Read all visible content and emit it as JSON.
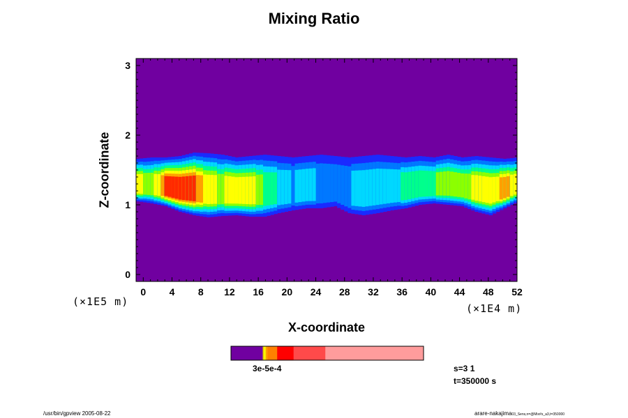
{
  "title": "Mixing Ratio",
  "chart_data": {
    "type": "heatmap",
    "title": "Mixing Ratio",
    "xlabel": "X-coordinate",
    "ylabel": "Z-coordinate",
    "x_scale_label": "(×1E4 m)",
    "y_scale_label": "(×1E5 m)",
    "xlim": [
      -1,
      52
    ],
    "ylim": [
      -0.1,
      3.1
    ],
    "x_ticks": [
      0,
      4,
      8,
      12,
      16,
      20,
      24,
      28,
      32,
      36,
      40,
      44,
      48,
      52
    ],
    "y_ticks": [
      0,
      1,
      2,
      3
    ],
    "background_color": "#7000a0",
    "colorscale": [
      "#7000a0",
      "#1a2aff",
      "#0078ff",
      "#00d8ff",
      "#00ff8c",
      "#8cff00",
      "#ffff00",
      "#ffa000",
      "#ff2a00"
    ],
    "layer": {
      "top": [
        1.66,
        1.68,
        1.68,
        1.7,
        1.75,
        1.74,
        1.72,
        1.68,
        1.7,
        1.72,
        1.7,
        1.68,
        1.7,
        1.72,
        1.7,
        1.68,
        1.7,
        1.72,
        1.7,
        1.68,
        1.7,
        1.68,
        1.72,
        1.68,
        1.7,
        1.68,
        1.66,
        1.68
      ],
      "bottom": [
        1.05,
        1.02,
        0.98,
        0.9,
        0.85,
        0.82,
        0.84,
        0.85,
        0.83,
        0.83,
        0.88,
        0.92,
        0.95,
        0.95,
        0.98,
        0.88,
        0.85,
        0.88,
        0.92,
        0.95,
        1.0,
        1.02,
        1.0,
        0.98,
        0.9,
        0.85,
        0.95,
        1.05
      ],
      "intensity": [
        0.75,
        0.6,
        0.95,
        1.0,
        0.95,
        0.75,
        0.65,
        0.8,
        0.75,
        0.55,
        0.4,
        0.3,
        0.4,
        0.25,
        0.25,
        0.3,
        0.35,
        0.4,
        0.4,
        0.45,
        0.5,
        0.55,
        0.6,
        0.65,
        0.7,
        0.75,
        0.85,
        0.7
      ]
    },
    "colorbar": {
      "segments": [
        {
          "fraction": 0.165,
          "color": "#7000a0"
        },
        {
          "fraction": 0.007,
          "color": "#e8d000"
        },
        {
          "fraction": 0.008,
          "color": "#ffff00"
        },
        {
          "fraction": 0.01,
          "color": "#ffa000"
        },
        {
          "fraction": 0.05,
          "color": "#ff8000"
        },
        {
          "fraction": 0.085,
          "color": "#ff0000"
        },
        {
          "fraction": 0.165,
          "color": "#ff4a4a"
        },
        {
          "fraction": 0.51,
          "color": "#ff9c9c"
        }
      ],
      "tick_labels": [
        "1e-5",
        "2e-5",
        "3e-4"
      ],
      "overlapped_text": "3e-5e-4"
    },
    "grid": false,
    "legend": "none"
  },
  "info": {
    "step": "s=3 1",
    "time": "t=350000 s"
  },
  "footer": {
    "left": "/usr/bin/gpview 2005-08-22",
    "right_main": "arare-nakajima",
    "right_small": "03_Sens,n=@Mix#s_a3,t=350000"
  }
}
